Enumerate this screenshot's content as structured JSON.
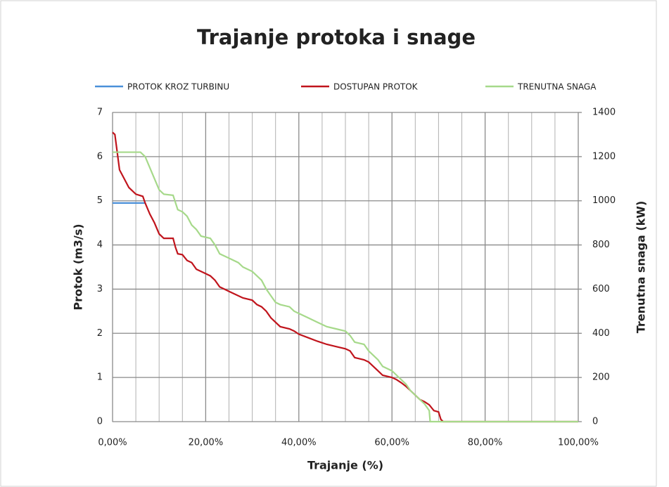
{
  "chart_data": {
    "type": "line",
    "title": "Trajanje protoka i snage",
    "xlabel": "Trajanje (%)",
    "ylabel": "Protok (m3/s)",
    "y2label": "Trenutna snaga (kW)",
    "xlim": [
      0,
      100
    ],
    "xticks": [
      {
        "value": 0,
        "label": "0,00%"
      },
      {
        "value": 20,
        "label": "20,00%"
      },
      {
        "value": 40,
        "label": "40,00%"
      },
      {
        "value": 60,
        "label": "60,00%"
      },
      {
        "value": 80,
        "label": "80,00%"
      },
      {
        "value": 100,
        "label": "100,00%"
      }
    ],
    "xminorticks": [
      5,
      10,
      15,
      25,
      30,
      35,
      45,
      50,
      55,
      65,
      70,
      75,
      85,
      90,
      95
    ],
    "ylim": [
      0,
      7
    ],
    "yticks": [
      0,
      1,
      2,
      3,
      4,
      5,
      6,
      7
    ],
    "y2lim": [
      0,
      1400
    ],
    "y2ticks": [
      0,
      200,
      400,
      600,
      800,
      1000,
      1200,
      1400
    ],
    "grid": true,
    "series": [
      {
        "name": "PROTOK KROZ TURBINU",
        "color": "#4a90d9",
        "x": [
          0,
          7
        ],
        "values": [
          4.95,
          4.95
        ]
      },
      {
        "name": "DOSTUPAN PROTOK",
        "color": "#c0141c",
        "x": [
          0,
          0.5,
          1,
          1.5,
          2.5,
          3.5,
          5,
          6.5,
          7,
          8,
          9,
          10,
          11,
          13,
          13.5,
          14,
          15,
          16,
          17,
          18,
          20,
          21,
          22,
          23,
          24,
          25,
          26,
          28,
          30,
          31,
          32,
          33,
          34,
          35,
          36,
          38,
          39,
          40,
          42,
          44,
          46,
          48,
          50,
          51,
          52,
          54,
          55,
          56,
          57,
          58,
          60,
          61,
          62,
          63,
          64,
          65,
          66,
          67,
          68,
          69,
          70,
          70.5,
          71,
          100
        ],
        "values": [
          6.55,
          6.5,
          6.1,
          5.7,
          5.5,
          5.3,
          5.15,
          5.1,
          4.95,
          4.7,
          4.5,
          4.25,
          4.15,
          4.15,
          3.95,
          3.8,
          3.78,
          3.65,
          3.6,
          3.45,
          3.35,
          3.3,
          3.2,
          3.05,
          3.0,
          2.95,
          2.9,
          2.8,
          2.75,
          2.65,
          2.6,
          2.5,
          2.35,
          2.25,
          2.15,
          2.1,
          2.05,
          1.98,
          1.9,
          1.82,
          1.75,
          1.7,
          1.65,
          1.6,
          1.45,
          1.4,
          1.35,
          1.25,
          1.15,
          1.05,
          1.0,
          0.95,
          0.88,
          0.8,
          0.7,
          0.6,
          0.5,
          0.45,
          0.38,
          0.25,
          0.22,
          0.05,
          0,
          0
        ]
      },
      {
        "name": "TRENUTNA SNAGA",
        "color": "#a6d98a",
        "axis": "y2",
        "x": [
          0,
          6,
          7,
          8,
          9,
          10,
          11,
          13,
          14,
          15,
          16,
          17,
          18,
          19,
          21,
          22,
          23,
          25,
          27,
          28,
          30,
          31,
          32,
          33,
          34,
          35,
          36,
          38,
          39,
          40,
          42,
          44,
          46,
          48,
          50,
          51,
          52,
          54,
          55,
          56,
          57,
          58,
          60,
          61,
          62,
          63,
          64,
          65,
          66,
          67,
          68,
          68.2,
          100
        ],
        "values": [
          1220,
          1220,
          1200,
          1150,
          1100,
          1050,
          1030,
          1025,
          960,
          950,
          930,
          890,
          870,
          840,
          830,
          800,
          760,
          740,
          720,
          700,
          680,
          660,
          640,
          600,
          570,
          540,
          530,
          520,
          500,
          490,
          470,
          450,
          430,
          420,
          410,
          390,
          360,
          350,
          320,
          300,
          280,
          250,
          230,
          210,
          190,
          170,
          140,
          120,
          100,
          80,
          50,
          0,
          0
        ]
      }
    ]
  }
}
